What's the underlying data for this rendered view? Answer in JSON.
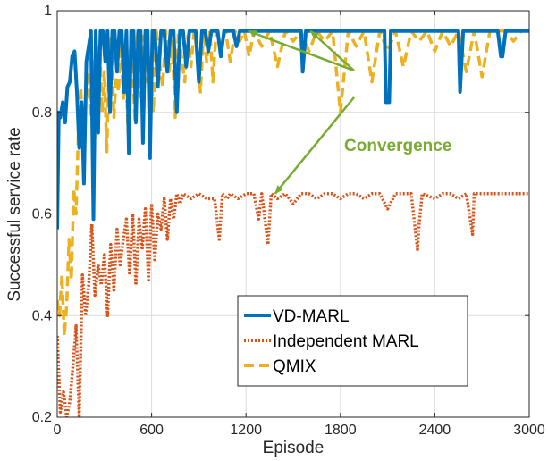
{
  "chart_data": {
    "type": "line",
    "title": "",
    "xlabel": "Episode",
    "ylabel": "Successful service rate",
    "xlim": [
      0,
      3000
    ],
    "ylim": [
      0.2,
      1.0
    ],
    "xticks": [
      0,
      600,
      1200,
      1800,
      2400,
      3000
    ],
    "yticks": [
      0.2,
      0.4,
      0.6,
      0.8,
      1.0
    ],
    "xtick_labels": [
      "0",
      "600",
      "1200",
      "1800",
      "2400",
      "3000"
    ],
    "ytick_labels": [
      "0.2",
      "0.4",
      "0.6",
      "0.8",
      "1"
    ],
    "grid": true,
    "legend_position": "bottom-right",
    "annotation": {
      "text": "Convergence",
      "color": "#77ac30",
      "text_at": [
        2000,
        0.84
      ],
      "arrows_to": [
        [
          1215,
          0.96
        ],
        [
          1610,
          0.96
        ],
        [
          1385,
          0.64
        ]
      ]
    },
    "series": [
      {
        "name": "VD-MARL",
        "color": "#0072bd",
        "style": "solid",
        "x": [
          0,
          10,
          20,
          35,
          50,
          65,
          80,
          95,
          110,
          125,
          140,
          155,
          170,
          185,
          200,
          215,
          230,
          245,
          260,
          275,
          290,
          305,
          320,
          335,
          350,
          365,
          380,
          395,
          410,
          425,
          440,
          455,
          470,
          485,
          500,
          515,
          530,
          545,
          560,
          575,
          590,
          605,
          620,
          640,
          660,
          680,
          700,
          720,
          740,
          760,
          780,
          800,
          820,
          840,
          860,
          880,
          900,
          920,
          940,
          960,
          980,
          1000,
          1020,
          1040,
          1060,
          1080,
          1100,
          1120,
          1140,
          1160,
          1180,
          1200,
          1300,
          1400,
          1500,
          1550,
          1560,
          1580,
          1600,
          1700,
          1800,
          1900,
          2000,
          2080,
          2090,
          2110,
          2120,
          2200,
          2300,
          2400,
          2500,
          2550,
          2560,
          2580,
          2600,
          2700,
          2800,
          2820,
          2830,
          2850,
          2860,
          2900,
          2950,
          3000
        ],
        "y": [
          0.57,
          0.8,
          0.79,
          0.82,
          0.78,
          0.85,
          0.86,
          0.91,
          0.92,
          0.84,
          0.73,
          0.82,
          0.66,
          0.9,
          0.93,
          0.96,
          0.59,
          0.96,
          0.76,
          0.96,
          0.96,
          0.9,
          0.96,
          0.8,
          0.96,
          0.96,
          0.88,
          0.96,
          0.96,
          0.84,
          0.96,
          0.72,
          0.96,
          0.96,
          0.78,
          0.96,
          0.96,
          0.74,
          0.96,
          0.96,
          0.71,
          0.96,
          0.96,
          0.85,
          0.96,
          0.96,
          0.88,
          0.96,
          0.96,
          0.8,
          0.96,
          0.96,
          0.89,
          0.96,
          0.96,
          0.96,
          0.86,
          0.96,
          0.96,
          0.92,
          0.96,
          0.96,
          0.96,
          0.91,
          0.96,
          0.96,
          0.96,
          0.96,
          0.93,
          0.96,
          0.96,
          0.96,
          0.96,
          0.96,
          0.96,
          0.96,
          0.88,
          0.96,
          0.96,
          0.96,
          0.96,
          0.96,
          0.96,
          0.96,
          0.82,
          0.82,
          0.96,
          0.96,
          0.96,
          0.96,
          0.96,
          0.96,
          0.84,
          0.96,
          0.96,
          0.96,
          0.96,
          0.91,
          0.91,
          0.96,
          0.96,
          0.96,
          0.96,
          0.96
        ]
      },
      {
        "name": "Independent MARL",
        "color": "#d95319",
        "style": "dotted",
        "x": [
          0,
          20,
          40,
          60,
          80,
          100,
          120,
          140,
          160,
          180,
          200,
          220,
          240,
          260,
          280,
          300,
          320,
          340,
          360,
          380,
          400,
          420,
          440,
          460,
          480,
          500,
          520,
          540,
          560,
          580,
          600,
          620,
          640,
          660,
          680,
          700,
          720,
          740,
          760,
          780,
          800,
          850,
          900,
          950,
          1000,
          1030,
          1050,
          1080,
          1100,
          1150,
          1200,
          1250,
          1280,
          1300,
          1340,
          1360,
          1400,
          1450,
          1500,
          1550,
          1600,
          1650,
          1700,
          1750,
          1800,
          1850,
          1900,
          1950,
          2000,
          2050,
          2100,
          2150,
          2200,
          2250,
          2290,
          2300,
          2320,
          2400,
          2450,
          2500,
          2550,
          2600,
          2640,
          2650,
          2700,
          2750,
          2800,
          2850,
          2900,
          2950,
          3000
        ],
        "y": [
          0.36,
          0.21,
          0.25,
          0.2,
          0.23,
          0.3,
          0.38,
          0.2,
          0.48,
          0.4,
          0.46,
          0.58,
          0.44,
          0.5,
          0.46,
          0.52,
          0.4,
          0.54,
          0.45,
          0.57,
          0.5,
          0.55,
          0.59,
          0.48,
          0.6,
          0.46,
          0.59,
          0.53,
          0.61,
          0.47,
          0.62,
          0.51,
          0.6,
          0.57,
          0.63,
          0.55,
          0.63,
          0.59,
          0.64,
          0.62,
          0.64,
          0.63,
          0.64,
          0.63,
          0.63,
          0.55,
          0.64,
          0.63,
          0.64,
          0.63,
          0.64,
          0.64,
          0.59,
          0.64,
          0.54,
          0.64,
          0.63,
          0.64,
          0.62,
          0.64,
          0.64,
          0.63,
          0.64,
          0.64,
          0.63,
          0.64,
          0.64,
          0.63,
          0.64,
          0.64,
          0.61,
          0.64,
          0.64,
          0.64,
          0.53,
          0.58,
          0.64,
          0.63,
          0.64,
          0.64,
          0.63,
          0.64,
          0.56,
          0.64,
          0.64,
          0.64,
          0.64,
          0.64,
          0.64,
          0.64,
          0.64
        ]
      },
      {
        "name": "QMIX",
        "color": "#edb120",
        "style": "dashed",
        "x": [
          0,
          15,
          30,
          45,
          60,
          75,
          90,
          105,
          120,
          135,
          150,
          165,
          180,
          195,
          210,
          225,
          240,
          255,
          270,
          285,
          300,
          315,
          330,
          345,
          360,
          375,
          390,
          405,
          420,
          435,
          450,
          465,
          480,
          495,
          510,
          530,
          550,
          570,
          590,
          610,
          630,
          650,
          670,
          690,
          710,
          730,
          750,
          770,
          790,
          810,
          830,
          850,
          870,
          890,
          910,
          930,
          950,
          970,
          990,
          1010,
          1040,
          1070,
          1100,
          1130,
          1160,
          1190,
          1220,
          1250,
          1300,
          1350,
          1400,
          1450,
          1500,
          1550,
          1600,
          1650,
          1700,
          1750,
          1800,
          1850,
          1900,
          1950,
          2000,
          2050,
          2100,
          2150,
          2200,
          2250,
          2300,
          2350,
          2400,
          2450,
          2500,
          2550,
          2600,
          2650,
          2700,
          2750,
          2800,
          2850,
          2900,
          2950,
          3000
        ],
        "y": [
          0.43,
          0.4,
          0.48,
          0.36,
          0.42,
          0.55,
          0.47,
          0.65,
          0.6,
          0.77,
          0.85,
          0.7,
          0.83,
          0.88,
          0.79,
          0.9,
          0.75,
          0.86,
          0.93,
          0.8,
          0.88,
          0.72,
          0.9,
          0.95,
          0.79,
          0.87,
          0.84,
          0.95,
          0.82,
          0.9,
          0.76,
          0.93,
          0.88,
          0.78,
          0.96,
          0.83,
          0.95,
          0.86,
          0.91,
          0.8,
          0.96,
          0.9,
          0.85,
          0.96,
          0.88,
          0.94,
          0.79,
          0.96,
          0.91,
          0.86,
          0.95,
          0.89,
          0.96,
          0.92,
          0.84,
          0.96,
          0.9,
          0.96,
          0.86,
          0.96,
          0.93,
          0.96,
          0.9,
          0.96,
          0.94,
          0.96,
          0.91,
          0.96,
          0.93,
          0.96,
          0.89,
          0.96,
          0.94,
          0.96,
          0.92,
          0.96,
          0.94,
          0.96,
          0.8,
          0.96,
          0.93,
          0.96,
          0.86,
          0.96,
          0.92,
          0.96,
          0.89,
          0.96,
          0.94,
          0.96,
          0.92,
          0.96,
          0.93,
          0.96,
          0.88,
          0.96,
          0.87,
          0.96,
          0.96,
          0.96,
          0.94,
          0.96,
          0.96
        ]
      }
    ]
  }
}
